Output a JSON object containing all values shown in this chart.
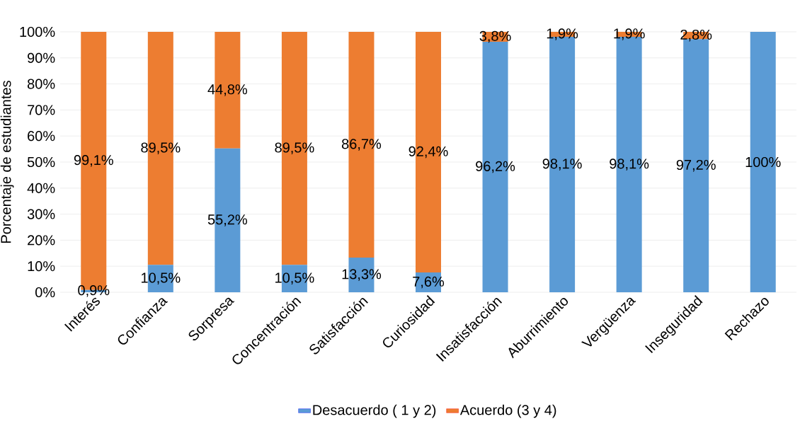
{
  "chart_data": {
    "type": "bar",
    "stacked": true,
    "ylabel": "Porcentaje de estudiantes",
    "categories": [
      "Interés",
      "Confianza",
      "Sorpresa",
      "Concentración",
      "Satisfacción",
      "Curiosidad",
      "Insatisfacción",
      "Aburrimiento",
      "Vergüenza",
      "Inseguridad",
      "Rechazo"
    ],
    "series": [
      {
        "name": "Desacuerdo ( 1 y 2)",
        "color": "#5b9bd5",
        "values": [
          0.9,
          10.5,
          55.2,
          10.5,
          13.3,
          7.6,
          96.2,
          98.1,
          98.1,
          97.2,
          100
        ],
        "value_labels": [
          "0,9%",
          "10,5%",
          "55,2%",
          "10,5%",
          "13,3%",
          "7,6%",
          "96,2%",
          "98,1%",
          "98,1%",
          "97,2%",
          "100%"
        ]
      },
      {
        "name": "Acuerdo (3 y 4)",
        "color": "#ed7d31",
        "values": [
          99.1,
          89.5,
          44.8,
          89.5,
          86.7,
          92.4,
          3.8,
          1.9,
          1.9,
          2.8,
          0
        ],
        "value_labels": [
          "99,1%",
          "89,5%",
          "44,8%",
          "89,5%",
          "86,7%",
          "92,4%",
          "3,8%",
          "1,9%",
          "1,9%",
          "2,8%",
          null
        ]
      }
    ],
    "ylim": [
      0,
      100
    ],
    "yticks": [
      {
        "value": 0,
        "label": "0%"
      },
      {
        "value": 10,
        "label": "10%"
      },
      {
        "value": 20,
        "label": "20%"
      },
      {
        "value": 30,
        "label": "30%"
      },
      {
        "value": 40,
        "label": "40%"
      },
      {
        "value": 50,
        "label": "50%"
      },
      {
        "value": 60,
        "label": "60%"
      },
      {
        "value": 70,
        "label": "70%"
      },
      {
        "value": 80,
        "label": "80%"
      },
      {
        "value": 90,
        "label": "90%"
      },
      {
        "value": 100,
        "label": "100%"
      }
    ],
    "grid": "y",
    "legend": "bottom"
  }
}
